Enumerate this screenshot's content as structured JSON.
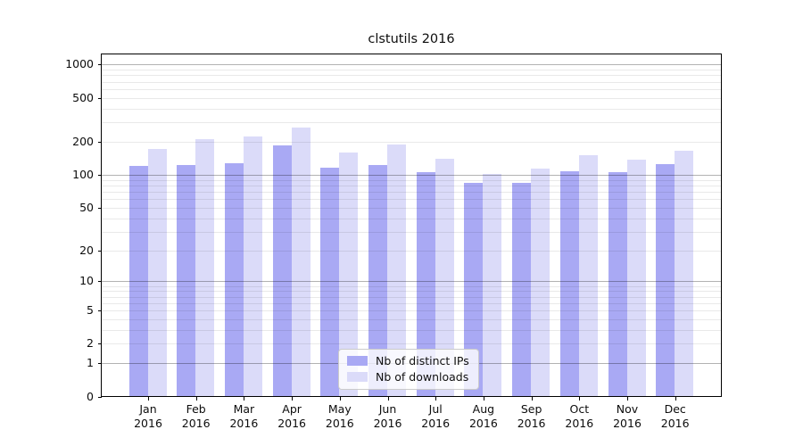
{
  "figure_title": "clstutils 2016",
  "chart_data": {
    "type": "bar",
    "title": "clstutils 2016",
    "categories": [
      "Jan",
      "Feb",
      "Mar",
      "Apr",
      "May",
      "Jun",
      "Jul",
      "Aug",
      "Sep",
      "Oct",
      "Nov",
      "Dec"
    ],
    "category_year": "2016",
    "series": [
      {
        "name": "Nb of distinct IPs",
        "color": "#a9a9f4",
        "values": [
          121,
          125,
          129,
          188,
          118,
          125,
          107,
          85,
          85,
          108,
          106,
          126
        ]
      },
      {
        "name": "Nb of downloads",
        "color": "#dbdbf9",
        "values": [
          173,
          213,
          224,
          272,
          161,
          192,
          141,
          103,
          116,
          152,
          138,
          166
        ]
      }
    ],
    "yscale": "log1p",
    "ylim": [
      0,
      1263
    ],
    "yticks": [
      1000,
      500,
      200,
      100,
      50,
      20,
      10,
      5,
      2,
      1,
      0
    ],
    "grid": {
      "major_values": [
        1,
        10,
        100,
        1000
      ],
      "minor_values": [
        2,
        3,
        4,
        5,
        6,
        7,
        8,
        9,
        20,
        30,
        40,
        50,
        60,
        70,
        80,
        90,
        200,
        300,
        400,
        500,
        600,
        700,
        800,
        900
      ]
    },
    "legend_position": "lower center",
    "xlabel": "",
    "ylabel": ""
  },
  "colors": {
    "background": "#ffffff",
    "spine": "#000000",
    "grid_major": "rgba(0,0,0,0.30)",
    "grid_minor": "rgba(0,0,0,0.085)",
    "text": "#0d0d0d"
  }
}
